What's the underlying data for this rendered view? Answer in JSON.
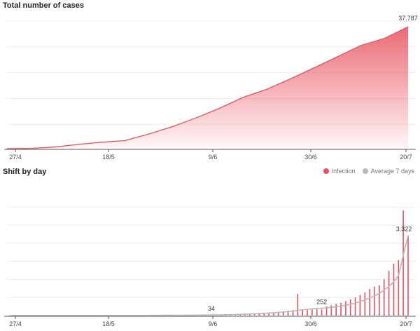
{
  "colors": {
    "infection": "#e8505b",
    "average": "#b8b8b8",
    "grid": "#ececec",
    "axis": "#555555"
  },
  "legend": {
    "infection_label": "Infection",
    "average_label": "Average 7 days"
  },
  "chart_data": [
    {
      "type": "area",
      "title": "Total number of cases",
      "xlabel": "",
      "ylabel": "",
      "x_ticks": [
        "27/4",
        "18/5",
        "9/6",
        "30/6",
        "20/7"
      ],
      "days": 84,
      "ylim": [
        0,
        40000
      ],
      "grid": true,
      "end_label": "37.787",
      "series": [
        {
          "values": [
            0,
            80,
            500,
            1300,
            2000,
            2500,
            4500,
            6800,
            9500,
            12500,
            15900,
            18400,
            21600,
            25000,
            28500,
            32000,
            34200,
            37787
          ]
        }
      ]
    },
    {
      "type": "bar",
      "title": "Shift by day",
      "xlabel": "",
      "ylabel": "",
      "x_ticks": [
        "27/4",
        "18/5",
        "9/6",
        "30/6",
        "20/7"
      ],
      "days": 84,
      "ylim": [
        0,
        4500
      ],
      "grid": true,
      "legend_position": "top-right",
      "annotations": [
        {
          "label": "34"
        },
        {
          "label": "252"
        },
        {
          "label": "3.322"
        }
      ],
      "series": [
        {
          "name": "Infection",
          "values": [
            1,
            2,
            1,
            3,
            2,
            1,
            2,
            3,
            2,
            4,
            3,
            2,
            3,
            5,
            4,
            3,
            4,
            5,
            6,
            4,
            5,
            7,
            6,
            5,
            8,
            6,
            7,
            9,
            8,
            10,
            12,
            9,
            11,
            14,
            12,
            15,
            18,
            16,
            20,
            22,
            25,
            28,
            34,
            30,
            40,
            45,
            50,
            60,
            70,
            80,
            90,
            100,
            110,
            120,
            130,
            140,
            160,
            180,
            200,
            220,
            900,
            230,
            240,
            250,
            260,
            252,
            380,
            430,
            480,
            530,
            600,
            670,
            750,
            850,
            950,
            1100,
            1200,
            1250,
            1500,
            1850,
            2150,
            2300,
            4350,
            3322
          ]
        },
        {
          "name": "Average 7 days",
          "values": [
            1,
            2,
            2,
            2,
            2,
            2,
            2,
            2,
            2,
            3,
            3,
            3,
            3,
            3,
            3,
            3,
            4,
            4,
            4,
            4,
            5,
            5,
            5,
            5,
            6,
            6,
            6,
            7,
            7,
            8,
            9,
            10,
            11,
            12,
            13,
            14,
            15,
            16,
            17,
            19,
            21,
            23,
            25,
            28,
            31,
            35,
            39,
            44,
            50,
            56,
            64,
            72,
            82,
            92,
            104,
            117,
            131,
            147,
            165,
            185,
            210,
            235,
            260,
            280,
            295,
            305,
            320,
            340,
            365,
            395,
            430,
            470,
            520,
            580,
            650,
            730,
            820,
            920,
            1050,
            1200,
            1400,
            1650,
            2500,
            3322
          ]
        }
      ]
    }
  ]
}
